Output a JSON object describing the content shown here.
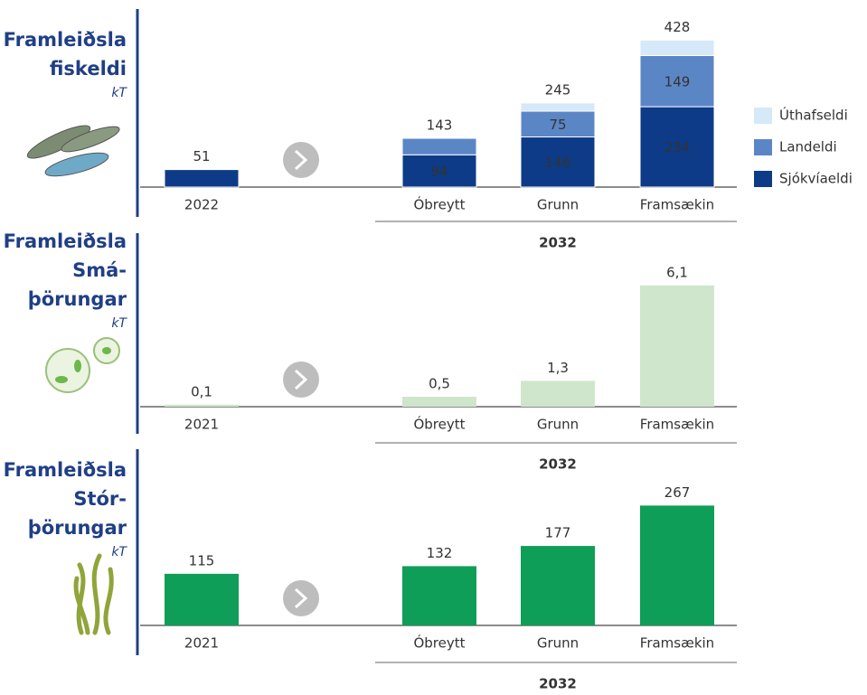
{
  "chart_data": [
    {
      "type": "stacked_bar",
      "title": [
        "Framleiðsla",
        "fiskeldi"
      ],
      "unit": "kT",
      "categories": [
        "2022",
        "Óbreytt",
        "Grunn",
        "Framsækin"
      ],
      "group_label": "2032",
      "series": [
        {
          "name": "Sjókvíaeldi",
          "color": "#0d3b87",
          "values": [
            51,
            94,
            146,
            234
          ]
        },
        {
          "name": "Landeldi",
          "color": "#5b86c6",
          "values": [
            null,
            48,
            75,
            149
          ]
        },
        {
          "name": "Úthafseldi",
          "color": "#d5e9f8",
          "values": [
            null,
            null,
            24,
            45
          ]
        }
      ],
      "totals": [
        51,
        143,
        245,
        428
      ],
      "ylim": [
        0,
        450
      ],
      "legend": "right"
    },
    {
      "type": "bar",
      "title": [
        "Framleiðsla",
        "Smá-",
        "þörungar"
      ],
      "unit": "kT",
      "categories": [
        "2021",
        "Óbreytt",
        "Grunn",
        "Framsækin"
      ],
      "group_label": "2032",
      "color": "#cfe6cd",
      "values": [
        0.1,
        0.5,
        1.3,
        6.1
      ],
      "value_labels": [
        "0,1",
        "0,5",
        "1,3",
        "6,1"
      ],
      "ylim": [
        0,
        6.5
      ]
    },
    {
      "type": "bar",
      "title": [
        "Framleiðsla",
        "Stór-",
        "þörungar"
      ],
      "unit": "kT",
      "categories": [
        "2021",
        "Óbreytt",
        "Grunn",
        "Framsækin"
      ],
      "group_label": "2032",
      "color": "#0f9e57",
      "values": [
        115,
        132,
        177,
        267
      ],
      "ylim": [
        0,
        300
      ]
    }
  ]
}
